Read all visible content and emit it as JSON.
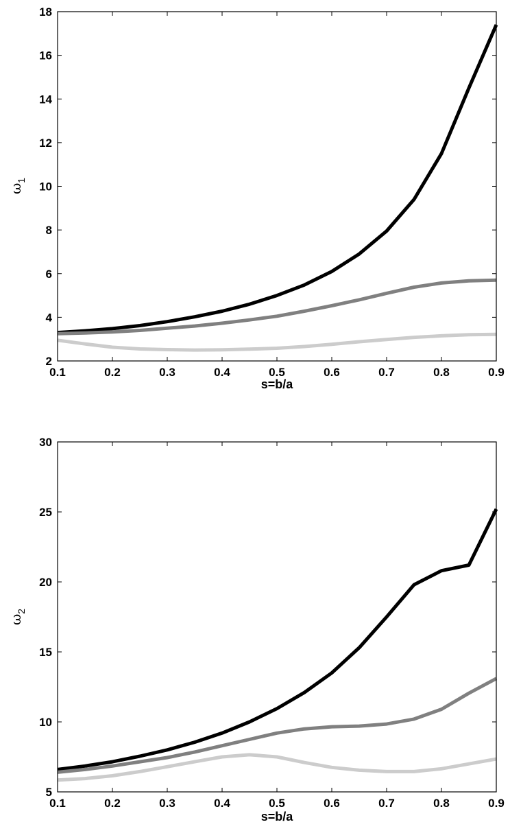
{
  "chart_data": [
    {
      "type": "line",
      "title": "",
      "xlabel": "s=b/a",
      "ylabel": "ω",
      "ylabel_subscript": "1",
      "xlim": [
        0.1,
        0.9
      ],
      "ylim": [
        2,
        18
      ],
      "xticks": [
        0.1,
        0.2,
        0.3,
        0.4,
        0.5,
        0.6,
        0.7,
        0.8,
        0.9
      ],
      "yticks": [
        2,
        4,
        6,
        8,
        10,
        12,
        14,
        16,
        18
      ],
      "grid": false,
      "x": [
        0.1,
        0.15,
        0.2,
        0.25,
        0.3,
        0.35,
        0.4,
        0.45,
        0.5,
        0.55,
        0.6,
        0.65,
        0.7,
        0.75,
        0.8,
        0.85,
        0.9
      ],
      "series": [
        {
          "color": "#000000",
          "values": [
            3.3,
            3.38,
            3.48,
            3.62,
            3.8,
            4.02,
            4.28,
            4.6,
            5.0,
            5.48,
            6.1,
            6.9,
            7.95,
            9.4,
            11.5,
            14.5,
            17.4
          ]
        },
        {
          "color": "#808080",
          "values": [
            3.25,
            3.28,
            3.33,
            3.4,
            3.5,
            3.6,
            3.73,
            3.88,
            4.05,
            4.28,
            4.53,
            4.8,
            5.1,
            5.38,
            5.57,
            5.67,
            5.7
          ]
        },
        {
          "color": "#cccccc",
          "values": [
            2.95,
            2.78,
            2.63,
            2.55,
            2.52,
            2.5,
            2.51,
            2.54,
            2.58,
            2.66,
            2.76,
            2.88,
            2.98,
            3.08,
            3.15,
            3.2,
            3.22
          ]
        }
      ]
    },
    {
      "type": "line",
      "title": "",
      "xlabel": "s=b/a",
      "ylabel": "ω",
      "ylabel_subscript": "2",
      "xlim": [
        0.1,
        0.9
      ],
      "ylim": [
        5,
        30
      ],
      "xticks": [
        0.1,
        0.2,
        0.3,
        0.4,
        0.5,
        0.6,
        0.7,
        0.8,
        0.9
      ],
      "yticks": [
        5,
        10,
        15,
        20,
        25,
        30
      ],
      "grid": false,
      "x": [
        0.1,
        0.15,
        0.2,
        0.25,
        0.3,
        0.35,
        0.4,
        0.45,
        0.5,
        0.55,
        0.6,
        0.65,
        0.7,
        0.75,
        0.8,
        0.85,
        0.9
      ],
      "series": [
        {
          "color": "#000000",
          "values": [
            6.6,
            6.85,
            7.15,
            7.55,
            8.0,
            8.55,
            9.2,
            10.0,
            10.95,
            12.1,
            13.5,
            15.3,
            17.5,
            19.8,
            20.8,
            21.2,
            25.2
          ]
        },
        {
          "color": "#808080",
          "values": [
            6.4,
            6.6,
            6.85,
            7.15,
            7.45,
            7.85,
            8.3,
            8.75,
            9.2,
            9.5,
            9.65,
            9.7,
            9.85,
            10.2,
            10.9,
            12.05,
            13.1
          ]
        },
        {
          "color": "#cccccc",
          "values": [
            5.85,
            5.95,
            6.15,
            6.45,
            6.8,
            7.15,
            7.5,
            7.65,
            7.5,
            7.1,
            6.75,
            6.55,
            6.45,
            6.45,
            6.65,
            7.0,
            7.35
          ]
        }
      ]
    }
  ]
}
